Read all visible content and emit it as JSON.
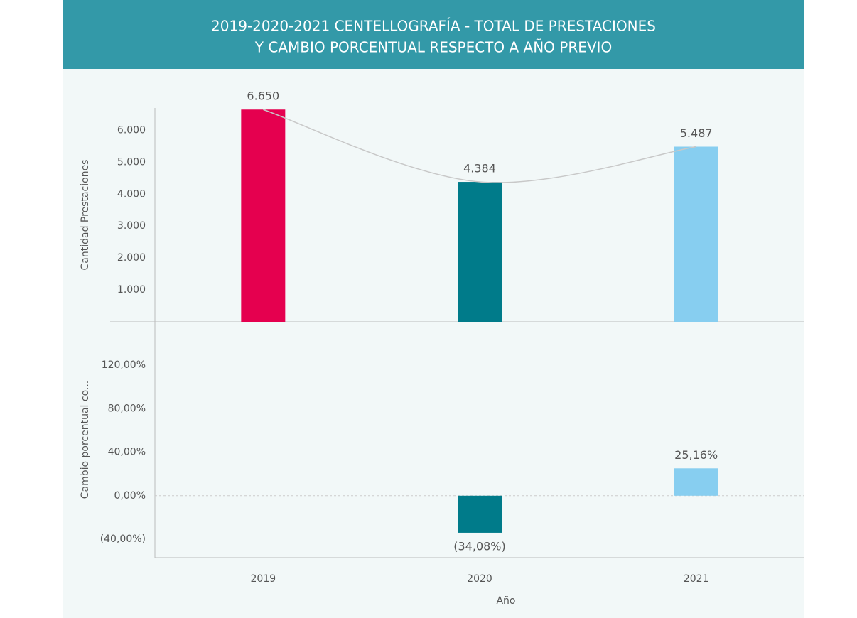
{
  "chart_data": [
    {
      "type": "bar",
      "title": [
        "2019-2020-2021 CENTELLOGRAFÍA - TOTAL DE PRESTACIONES",
        "Y CAMBIO PORCENTUAL RESPECTO A AÑO PREVIO"
      ],
      "ylabel": "Cantidad Prestaciones",
      "categories": [
        "2019",
        "2020",
        "2021"
      ],
      "values": [
        6650,
        4384,
        5487
      ],
      "value_labels": [
        "6.650",
        "4.384",
        "5.487"
      ],
      "colors": [
        "#e5004f",
        "#007b8a",
        "#87cef0"
      ],
      "trend_line": true,
      "ylim": [
        0,
        6700
      ],
      "yticks": [
        {
          "value": 1000,
          "label": "1.000"
        },
        {
          "value": 2000,
          "label": "2.000"
        },
        {
          "value": 3000,
          "label": "3.000"
        },
        {
          "value": 4000,
          "label": "4.000"
        },
        {
          "value": 5000,
          "label": "5.000"
        },
        {
          "value": 6000,
          "label": "6.000"
        }
      ]
    },
    {
      "type": "bar",
      "ylabel": "Cambio porcentual co...",
      "xlabel": "Año",
      "categories": [
        "2019",
        "2020",
        "2021"
      ],
      "values": [
        null,
        -34.08,
        25.16
      ],
      "value_labels": [
        null,
        "(34,08%)",
        "25,16%"
      ],
      "colors": [
        null,
        "#007b8a",
        "#87cef0"
      ],
      "ylim": [
        -57,
        160
      ],
      "yticks": [
        {
          "value": -40,
          "label": "(40,00%)"
        },
        {
          "value": 0,
          "label": "0,00%"
        },
        {
          "value": 40,
          "label": "40,00%"
        },
        {
          "value": 80,
          "label": "80,00%"
        },
        {
          "value": 120,
          "label": "120,00%"
        }
      ]
    }
  ]
}
